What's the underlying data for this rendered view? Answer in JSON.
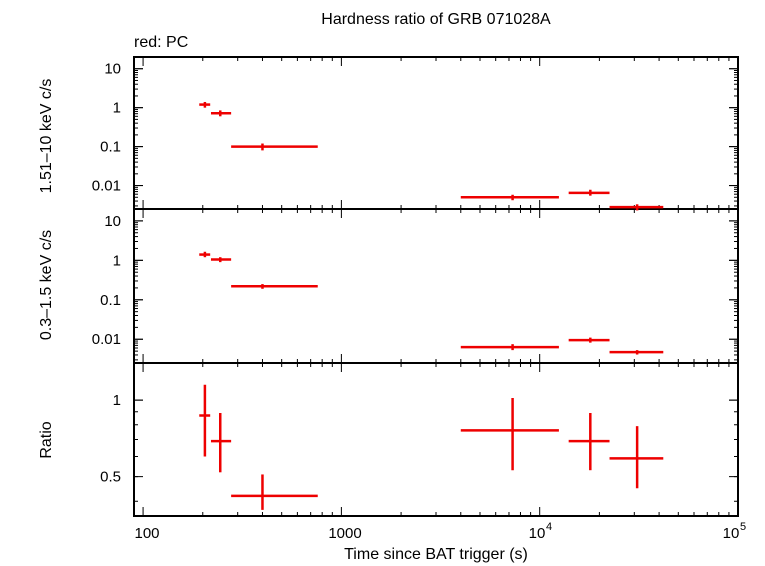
{
  "chart_data": {
    "type": "scatter",
    "title": "Hardness ratio of GRB 071028A",
    "subtitle": "red: PC",
    "xlabel": "Time since BAT trigger (s)",
    "xscale": "log",
    "xlim": [
      90,
      100000
    ],
    "x_ticklabels": [
      "100",
      "1000",
      "10",
      "4",
      "10",
      "5"
    ],
    "color": "#ee0000",
    "panels": [
      {
        "id": "hard",
        "ylabel": "1.51–10 keV c/s",
        "yscale": "log",
        "ylim": [
          0.0025,
          20
        ],
        "y_ticks": [
          10,
          1,
          0.1,
          0.01
        ],
        "y_ticklabels": [
          "10",
          "1",
          "0.1",
          "0.01"
        ],
        "points": [
          {
            "x": 205,
            "xerr": [
              192,
              218
            ],
            "y": 1.2,
            "yerr": [
              1.0,
              1.4
            ]
          },
          {
            "x": 245,
            "xerr": [
              220,
              278
            ],
            "y": 0.72,
            "yerr": [
              0.6,
              0.85
            ]
          },
          {
            "x": 400,
            "xerr": [
              278,
              760
            ],
            "y": 0.1,
            "yerr": [
              0.08,
              0.12
            ]
          },
          {
            "x": 7300,
            "xerr": [
              4000,
              12500
            ],
            "y": 0.005,
            "yerr": [
              0.0042,
              0.0058
            ]
          },
          {
            "x": 18000,
            "xerr": [
              14000,
              22500
            ],
            "y": 0.0065,
            "yerr": [
              0.0055,
              0.0078
            ]
          },
          {
            "x": 31000,
            "xerr": [
              22500,
              42000
            ],
            "y": 0.0028,
            "yerr": [
              0.0023,
              0.0033
            ]
          }
        ]
      },
      {
        "id": "soft",
        "ylabel": "0.3–1.5 keV c/s",
        "yscale": "log",
        "ylim": [
          0.0025,
          20
        ],
        "y_ticks": [
          10,
          1,
          0.1,
          0.01
        ],
        "y_ticklabels": [
          "10",
          "1",
          "0.1",
          "0.01"
        ],
        "points": [
          {
            "x": 205,
            "xerr": [
              192,
              218
            ],
            "y": 1.4,
            "yerr": [
              1.2,
              1.65
            ]
          },
          {
            "x": 245,
            "xerr": [
              220,
              278
            ],
            "y": 1.05,
            "yerr": [
              0.9,
              1.2
            ]
          },
          {
            "x": 400,
            "xerr": [
              278,
              760
            ],
            "y": 0.22,
            "yerr": [
              0.19,
              0.25
            ]
          },
          {
            "x": 7300,
            "xerr": [
              4000,
              12500
            ],
            "y": 0.0063,
            "yerr": [
              0.0053,
              0.0075
            ]
          },
          {
            "x": 18000,
            "xerr": [
              14000,
              22500
            ],
            "y": 0.0095,
            "yerr": [
              0.0082,
              0.011
            ]
          },
          {
            "x": 31000,
            "xerr": [
              22500,
              42000
            ],
            "y": 0.0047,
            "yerr": [
              0.0041,
              0.0053
            ]
          }
        ]
      },
      {
        "id": "ratio",
        "ylabel": "Ratio",
        "yscale": "log",
        "ylim": [
          0.35,
          1.4
        ],
        "y_ticks": [
          1,
          0.5
        ],
        "y_ticklabels": [
          "1",
          "0.5"
        ],
        "points": [
          {
            "x": 205,
            "xerr": [
              192,
              218
            ],
            "y": 0.87,
            "yerr": [
              0.6,
              1.15
            ]
          },
          {
            "x": 245,
            "xerr": [
              220,
              278
            ],
            "y": 0.69,
            "yerr": [
              0.52,
              0.89
            ]
          },
          {
            "x": 400,
            "xerr": [
              278,
              760
            ],
            "y": 0.42,
            "yerr": [
              0.37,
              0.51
            ]
          },
          {
            "x": 7300,
            "xerr": [
              4000,
              12500
            ],
            "y": 0.76,
            "yerr": [
              0.53,
              1.02
            ]
          },
          {
            "x": 18000,
            "xerr": [
              14000,
              22500
            ],
            "y": 0.69,
            "yerr": [
              0.53,
              0.89
            ]
          },
          {
            "x": 31000,
            "xerr": [
              22500,
              42000
            ],
            "y": 0.59,
            "yerr": [
              0.45,
              0.79
            ]
          }
        ]
      }
    ]
  }
}
